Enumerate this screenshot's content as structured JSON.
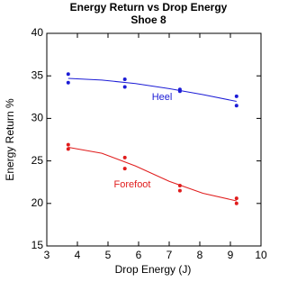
{
  "chart_data": {
    "type": "scatter",
    "title": "Energy Return vs Drop Energy",
    "subtitle": "Shoe 8",
    "x_label": "Drop Energy  (J)",
    "y_label": "Energy Return %",
    "xlim": [
      3,
      10
    ],
    "xticks": [
      3,
      4,
      5,
      6,
      7,
      8,
      9,
      10
    ],
    "ylim": [
      15,
      40
    ],
    "yticks": [
      15,
      20,
      25,
      30,
      35,
      40
    ],
    "series": [
      {
        "name": "Heel",
        "color": "#1c1cd6",
        "x": [
          3.7,
          3.7,
          5.55,
          5.55,
          7.35,
          7.35,
          9.2,
          9.2
        ],
        "values": [
          35.2,
          34.2,
          34.6,
          33.7,
          33.4,
          33.2,
          32.6,
          31.5
        ],
        "fit": {
          "x": [
            3.7,
            4.8,
            5.9,
            7.0,
            8.1,
            9.2
          ],
          "values": [
            34.7,
            34.5,
            34.1,
            33.5,
            32.8,
            32.0
          ]
        }
      },
      {
        "name": "Forefoot",
        "color": "#e01c1c",
        "x": [
          3.7,
          3.7,
          5.55,
          5.55,
          7.35,
          7.35,
          9.2,
          9.2
        ],
        "values": [
          26.9,
          26.4,
          25.4,
          24.1,
          22.1,
          21.5,
          20.6,
          20.0
        ],
        "fit": {
          "x": [
            3.7,
            4.8,
            5.9,
            7.0,
            8.1,
            9.2
          ],
          "values": [
            26.6,
            25.9,
            24.4,
            22.6,
            21.2,
            20.3
          ]
        }
      }
    ]
  }
}
